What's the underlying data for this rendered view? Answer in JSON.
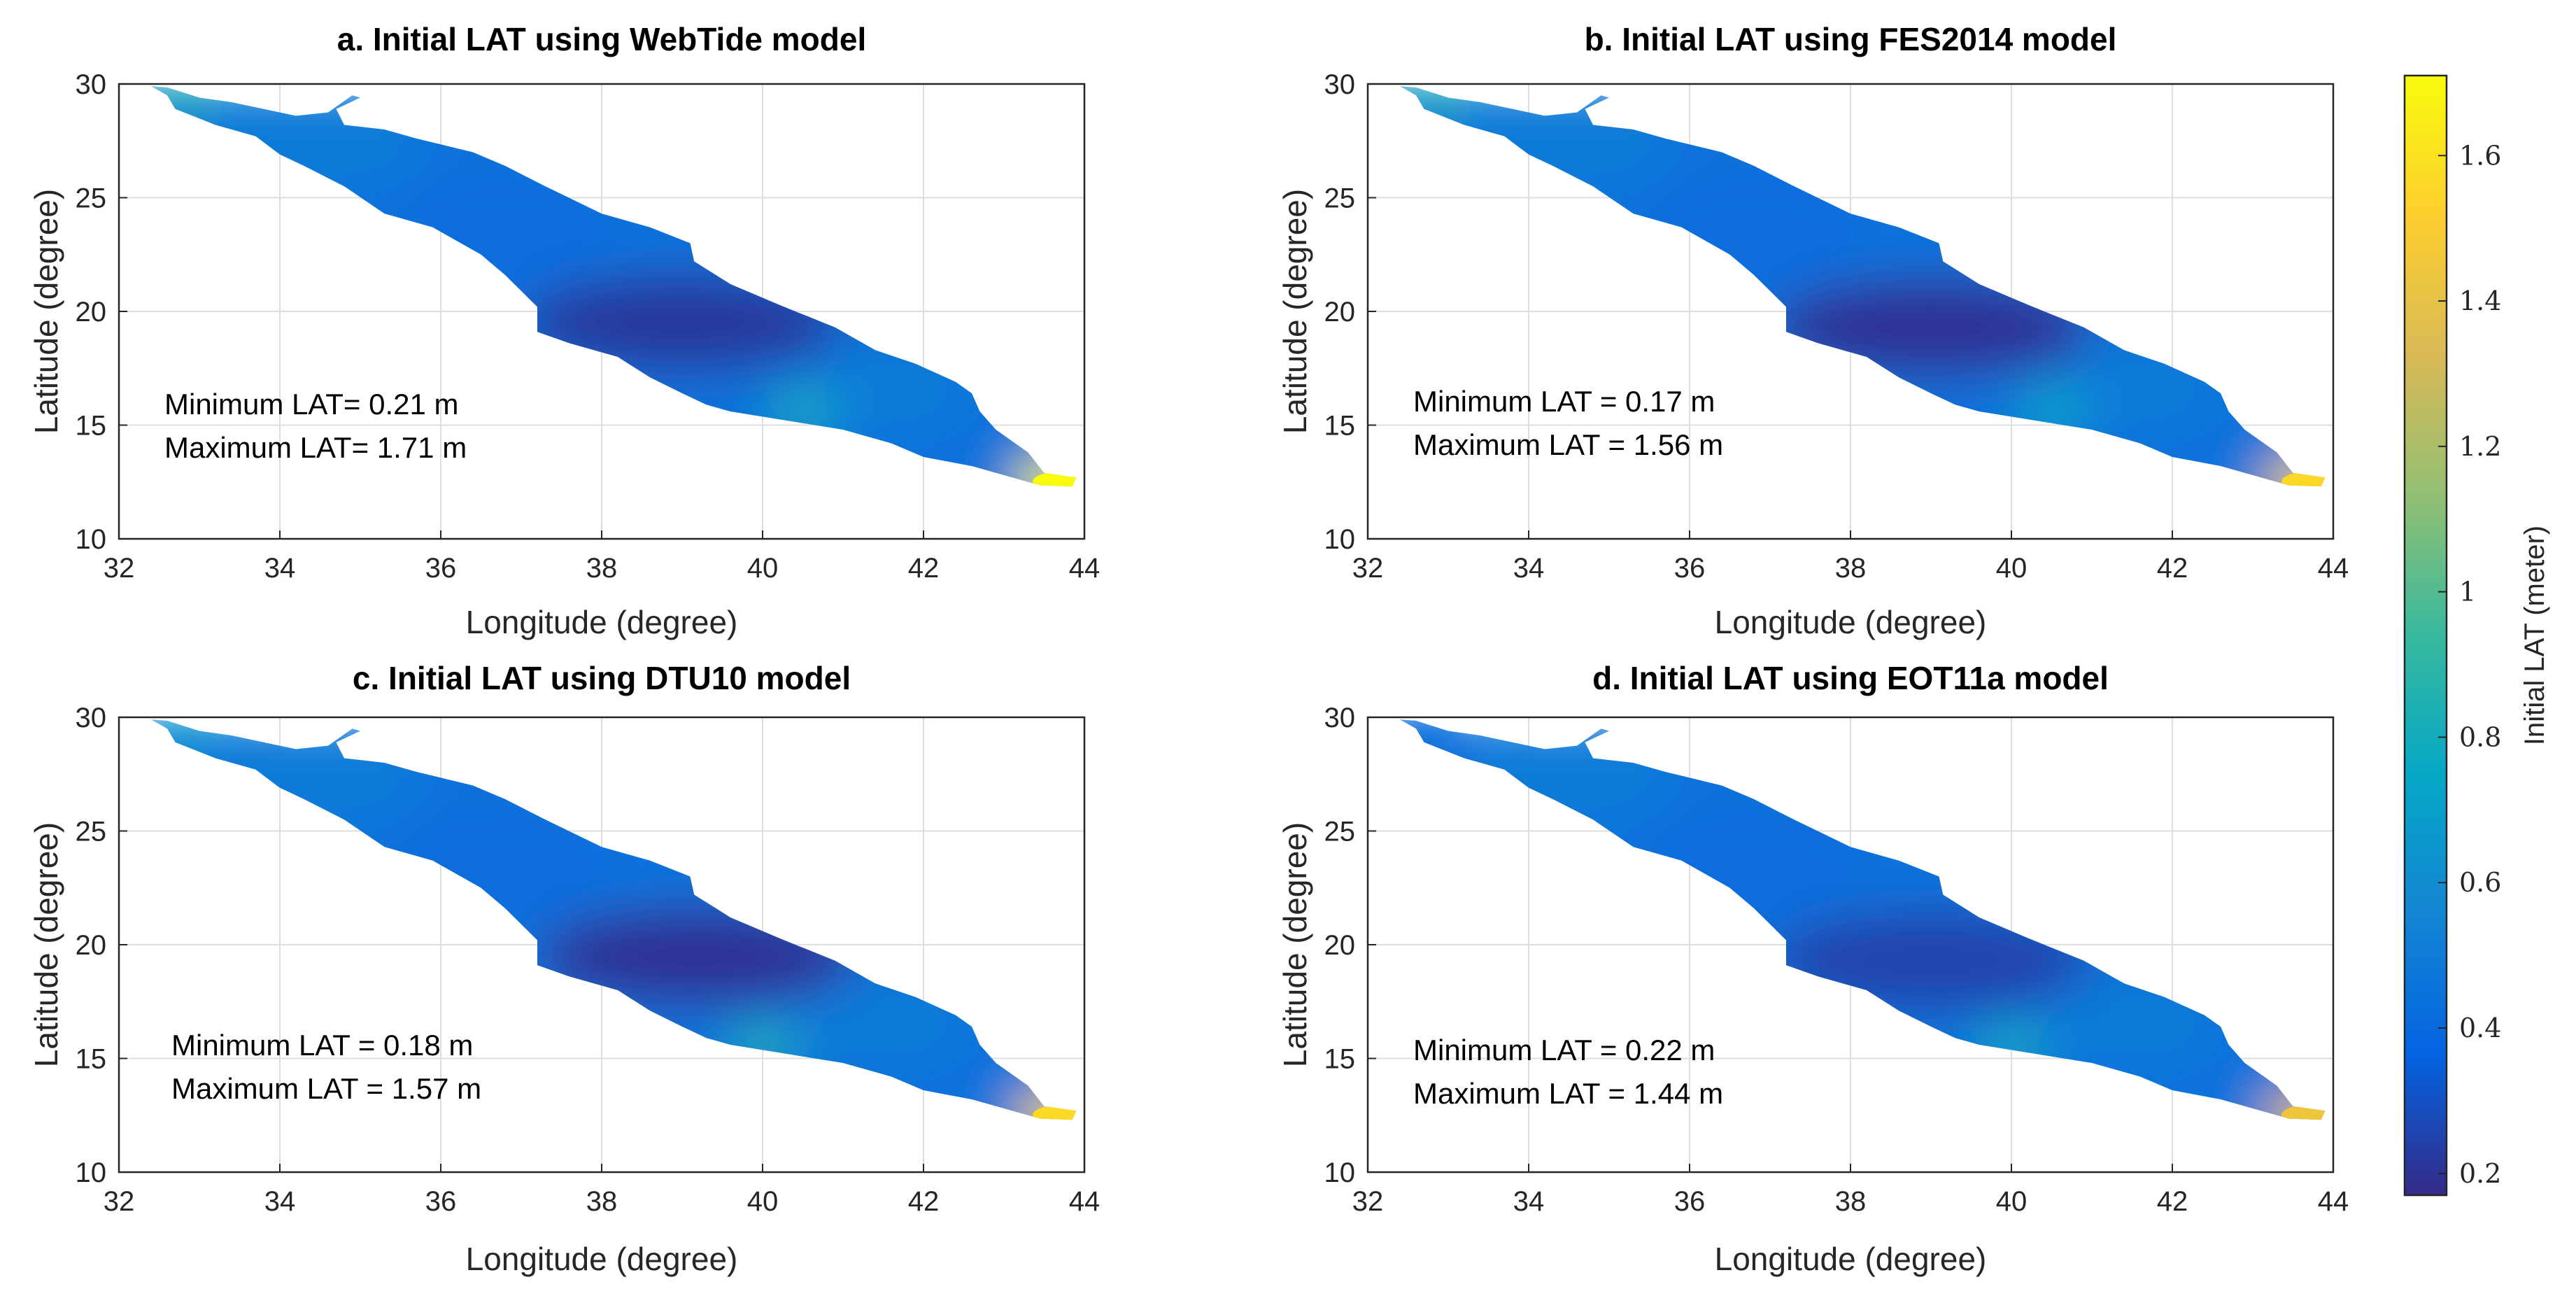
{
  "chart_data": [
    {
      "type": "heatmap",
      "panel": "a",
      "title": "a. Initial LAT using WebTide model",
      "xlabel": "Longitude (degree)",
      "ylabel": "Latitude (degree)",
      "xlim": [
        32,
        44
      ],
      "ylim": [
        10,
        30
      ],
      "xticks": [
        "32",
        "34",
        "36",
        "38",
        "40",
        "42",
        "44"
      ],
      "yticks": [
        "10",
        "15",
        "20",
        "25",
        "30"
      ],
      "grid": true,
      "annotations": [
        "Minimum LAT= 0.21 m",
        "Maximum LAT= 1.71 m"
      ],
      "min_lat": 0.21,
      "max_lat": 1.71,
      "hotspots": [
        {
          "lon": 39.0,
          "lat": 19.5,
          "value": 0.22
        },
        {
          "lon": 43.6,
          "lat": 12.5,
          "value": 1.71
        },
        {
          "lon": 32.8,
          "lat": 29.6,
          "value": 0.85
        },
        {
          "lon": 40.5,
          "lat": 15.6,
          "value": 0.8
        }
      ]
    },
    {
      "type": "heatmap",
      "panel": "b",
      "title": "b. Initial LAT using FES2014 model",
      "xlabel": "Longitude (degree)",
      "ylabel": "Latitude (degree)",
      "xlim": [
        32,
        44
      ],
      "ylim": [
        10,
        30
      ],
      "xticks": [
        "32",
        "34",
        "36",
        "38",
        "40",
        "42",
        "44"
      ],
      "yticks": [
        "10",
        "15",
        "20",
        "25",
        "30"
      ],
      "grid": true,
      "annotations": [
        "Minimum LAT = 0.17 m",
        "Maximum LAT = 1.56 m"
      ],
      "min_lat": 0.17,
      "max_lat": 1.56,
      "hotspots": [
        {
          "lon": 39.0,
          "lat": 19.3,
          "value": 0.2
        },
        {
          "lon": 43.6,
          "lat": 12.5,
          "value": 1.56
        },
        {
          "lon": 32.8,
          "lat": 29.6,
          "value": 0.85
        },
        {
          "lon": 40.5,
          "lat": 15.6,
          "value": 0.75
        }
      ]
    },
    {
      "type": "heatmap",
      "panel": "c",
      "title": "c. Initial LAT using DTU10 model",
      "xlabel": "Longitude (degree)",
      "ylabel": "Latitude (degree)",
      "xlim": [
        32,
        44
      ],
      "ylim": [
        10,
        30
      ],
      "xticks": [
        "32",
        "34",
        "36",
        "38",
        "40",
        "42",
        "44"
      ],
      "yticks": [
        "10",
        "15",
        "20",
        "25",
        "30"
      ],
      "grid": true,
      "annotations": [
        "Minimum LAT = 0.18 m",
        "Maximum LAT = 1.57 m"
      ],
      "min_lat": 0.18,
      "max_lat": 1.57,
      "hotspots": [
        {
          "lon": 39.2,
          "lat": 19.5,
          "value": 0.2
        },
        {
          "lon": 43.6,
          "lat": 12.5,
          "value": 1.57
        },
        {
          "lon": 32.8,
          "lat": 29.6,
          "value": 0.7
        },
        {
          "lon": 40.0,
          "lat": 15.5,
          "value": 0.85
        }
      ]
    },
    {
      "type": "heatmap",
      "panel": "d",
      "title": "d. Initial LAT using EOT11a model",
      "xlabel": "Longitude (degree)",
      "ylabel": "Latitude (degree)",
      "xlim": [
        32,
        44
      ],
      "ylim": [
        10,
        30
      ],
      "xticks": [
        "32",
        "34",
        "36",
        "38",
        "40",
        "42",
        "44"
      ],
      "yticks": [
        "10",
        "15",
        "20",
        "25",
        "30"
      ],
      "grid": true,
      "annotations": [
        "Minimum LAT = 0.22 m",
        "Maximum LAT = 1.44 m"
      ],
      "min_lat": 0.22,
      "max_lat": 1.44,
      "hotspots": [
        {
          "lon": 39.0,
          "lat": 19.3,
          "value": 0.25
        },
        {
          "lon": 43.6,
          "lat": 12.5,
          "value": 1.44
        },
        {
          "lon": 32.7,
          "lat": 29.7,
          "value": 0.35
        },
        {
          "lon": 40.0,
          "lat": 15.5,
          "value": 0.8
        }
      ]
    }
  ],
  "colorbar": {
    "label": "Initial LAT (meter)",
    "range": [
      0.17,
      1.71
    ],
    "ticks": [
      "0.2",
      "0.4",
      "0.6",
      "0.8",
      "1",
      "1.2",
      "1.4",
      "1.6"
    ],
    "colormap": "parula",
    "colors": [
      "#352a87",
      "#0363e1",
      "#1485d4",
      "#06a7c6",
      "#38b99e",
      "#92bf73",
      "#d9ba56",
      "#fcce2e",
      "#f9fb0e"
    ]
  },
  "coastline_lonlat": [
    [
      32.4,
      29.9
    ],
    [
      32.6,
      29.85
    ],
    [
      33.0,
      29.4
    ],
    [
      33.4,
      29.2
    ],
    [
      33.8,
      28.9
    ],
    [
      34.2,
      28.6
    ],
    [
      34.6,
      28.75
    ],
    [
      34.9,
      29.5
    ],
    [
      35.0,
      29.4
    ],
    [
      34.7,
      28.9
    ],
    [
      34.8,
      28.2
    ],
    [
      35.3,
      28.0
    ],
    [
      35.7,
      27.6
    ],
    [
      36.4,
      27.0
    ],
    [
      36.8,
      26.4
    ],
    [
      37.3,
      25.5
    ],
    [
      38.0,
      24.3
    ],
    [
      38.6,
      23.7
    ],
    [
      39.1,
      23.0
    ],
    [
      39.15,
      22.2
    ],
    [
      39.6,
      21.2
    ],
    [
      40.2,
      20.3
    ],
    [
      40.9,
      19.3
    ],
    [
      41.4,
      18.3
    ],
    [
      41.9,
      17.7
    ],
    [
      42.4,
      16.9
    ],
    [
      42.6,
      16.4
    ],
    [
      42.7,
      15.6
    ],
    [
      42.9,
      14.8
    ],
    [
      43.3,
      13.8
    ],
    [
      43.5,
      12.9
    ],
    [
      43.9,
      12.7
    ],
    [
      43.85,
      12.3
    ],
    [
      43.45,
      12.35
    ],
    [
      43.0,
      12.8
    ],
    [
      42.6,
      13.2
    ],
    [
      42.0,
      13.6
    ],
    [
      41.6,
      14.2
    ],
    [
      41.0,
      14.8
    ],
    [
      40.3,
      15.2
    ],
    [
      39.6,
      15.6
    ],
    [
      39.3,
      15.9
    ],
    [
      39.0,
      16.4
    ],
    [
      38.6,
      17.1
    ],
    [
      38.2,
      18.0
    ],
    [
      37.6,
      18.6
    ],
    [
      37.2,
      19.1
    ],
    [
      37.2,
      20.2
    ],
    [
      37.0,
      20.9
    ],
    [
      36.8,
      21.6
    ],
    [
      36.5,
      22.5
    ],
    [
      35.9,
      23.7
    ],
    [
      35.3,
      24.3
    ],
    [
      34.8,
      25.5
    ],
    [
      34.3,
      26.4
    ],
    [
      34.0,
      26.9
    ],
    [
      33.7,
      27.7
    ],
    [
      33.2,
      28.2
    ],
    [
      32.7,
      28.9
    ],
    [
      32.6,
      29.5
    ],
    [
      32.4,
      29.9
    ]
  ]
}
